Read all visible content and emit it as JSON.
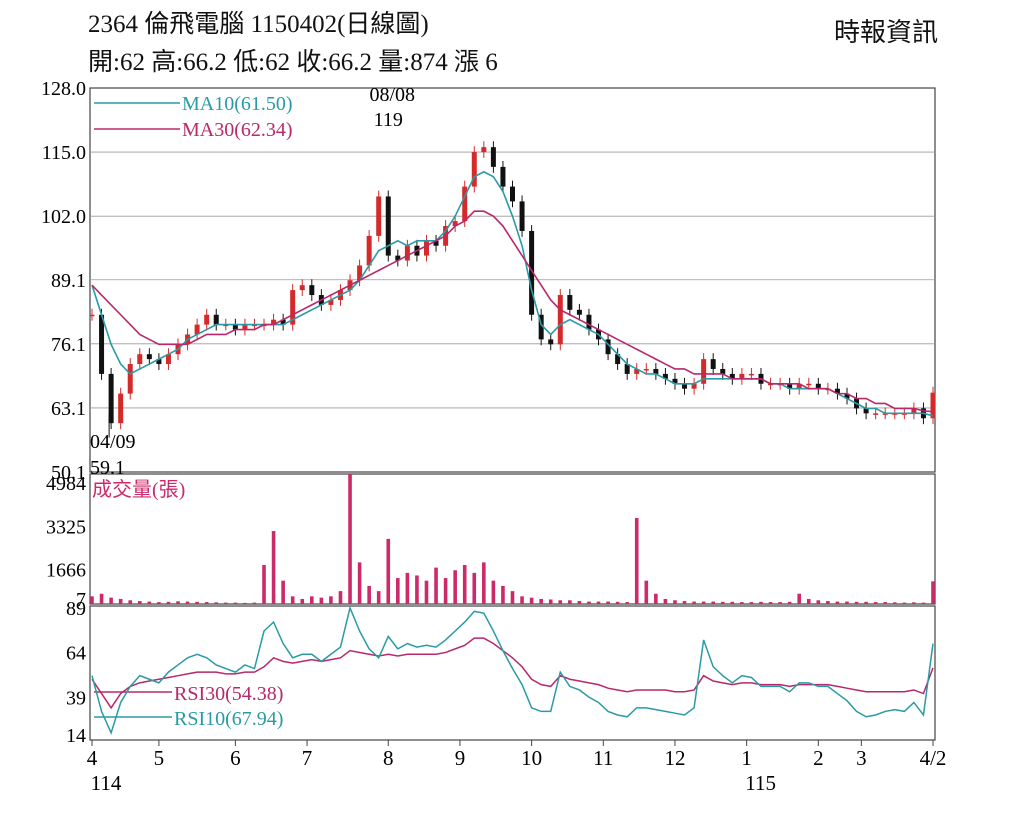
{
  "header": {
    "title": "2364  倫飛電腦 1150402(日線圖)",
    "quote": "開:62 高:66.2 低:62 收:66.2 量:874 漲 6",
    "source": "時報資訊"
  },
  "colors": {
    "ma10": "#2a9aa6",
    "ma30": "#b8286a",
    "volume": "#cc2a6a",
    "candle_up": "#d42a2a",
    "candle_down": "#111111",
    "rsi10": "#2a9aa6",
    "rsi30": "#b8286a",
    "grid": "#9a9a9a"
  },
  "chart_data": [
    {
      "type": "line",
      "name": "price",
      "ylim": [
        50.1,
        128.0
      ],
      "y_ticks": [
        "128.0",
        "115.0",
        "102.0",
        "89.1",
        "76.1",
        "63.1",
        "50.1"
      ],
      "y_tick_values": [
        128.0,
        115.0,
        102.0,
        89.1,
        76.1,
        63.1,
        50.1
      ],
      "grid": true,
      "x": [
        0,
        4,
        8,
        12,
        16,
        20,
        24,
        28,
        32,
        36,
        40,
        44,
        48,
        52,
        56,
        60,
        64,
        68,
        72,
        76,
        80,
        84,
        88,
        92,
        96,
        100,
        104,
        108,
        112,
        116,
        120,
        124,
        128,
        132,
        136,
        140,
        144,
        148,
        152,
        156,
        160,
        164,
        168,
        172,
        176,
        180,
        184,
        188,
        192,
        196,
        200,
        204,
        208,
        212,
        216,
        220,
        224,
        228,
        232,
        236,
        240,
        244,
        248,
        252,
        256,
        260,
        264,
        268,
        272,
        276,
        280,
        284,
        288,
        292,
        296,
        300,
        304,
        308,
        312,
        316,
        320,
        324,
        328,
        332,
        336,
        340,
        344,
        348,
        352
      ],
      "close": [
        82,
        70,
        60,
        66,
        72,
        74,
        73,
        72,
        74,
        76,
        78,
        80,
        82,
        80,
        80,
        79,
        80,
        80,
        80,
        81,
        80,
        87,
        88,
        86,
        84,
        85,
        87,
        89,
        92,
        98,
        106,
        94,
        93,
        96,
        94,
        97,
        96,
        100,
        101,
        108,
        115,
        116,
        112,
        108,
        105,
        99,
        82,
        77,
        76,
        86,
        83,
        82,
        79,
        77,
        74,
        72,
        70,
        71,
        71,
        70,
        69,
        68,
        67,
        68,
        73,
        71,
        70,
        69,
        70,
        70,
        68,
        68,
        68,
        67,
        68,
        68,
        67,
        67,
        66,
        65,
        63,
        62,
        62,
        62,
        62,
        62,
        63,
        61,
        66.2
      ],
      "series": [
        {
          "name": "MA10(61.50)",
          "values": [
            88,
            82,
            76,
            72,
            70,
            71,
            72,
            73,
            74,
            75,
            77,
            78,
            79,
            80,
            80,
            80,
            80,
            80,
            80,
            80,
            80,
            81,
            82,
            83,
            84,
            85,
            86,
            87,
            89,
            92,
            95,
            96,
            97,
            96,
            97,
            97,
            97,
            99,
            102,
            106,
            110,
            111,
            110,
            107,
            102,
            96,
            87,
            80,
            78,
            80,
            81,
            80,
            79,
            78,
            76,
            74,
            72,
            71,
            70,
            70,
            69,
            68,
            68,
            68,
            69,
            69,
            69,
            69,
            69,
            69,
            69,
            68,
            68,
            67,
            67,
            67,
            67,
            67,
            66,
            65,
            64,
            63,
            63,
            62,
            62,
            62,
            62,
            62,
            61.5
          ]
        },
        {
          "name": "MA30(62.34)",
          "values": [
            88,
            86,
            84,
            82,
            80,
            78,
            77,
            76,
            76,
            76,
            76,
            77,
            78,
            78,
            78,
            79,
            79,
            79,
            80,
            80,
            81,
            82,
            83,
            84,
            85,
            86,
            87,
            88,
            89,
            90,
            91,
            92,
            93,
            94,
            95,
            96,
            97,
            98,
            100,
            101,
            103,
            103,
            102,
            100,
            97,
            94,
            91,
            88,
            85,
            83,
            82,
            81,
            80,
            79,
            78,
            77,
            76,
            75,
            74,
            73,
            72,
            71,
            71,
            70,
            70,
            70,
            70,
            69,
            69,
            69,
            69,
            68,
            68,
            68,
            68,
            67,
            67,
            67,
            66,
            66,
            65,
            65,
            64,
            64,
            63,
            63,
            63,
            62.5,
            62.34
          ]
        }
      ],
      "annotations": [
        {
          "label": "08/08",
          "value": "119",
          "x": 124,
          "y": 119
        },
        {
          "label": "04/09",
          "value": "59.1",
          "x": 8,
          "y": 59.1
        }
      ]
    },
    {
      "type": "bar",
      "name": "成交量(張)",
      "ylim": [
        7,
        4984
      ],
      "y_ticks": [
        "4984",
        "3325",
        "1666",
        "7"
      ],
      "y_tick_values": [
        4984,
        3325,
        1666,
        7
      ],
      "x": [
        0,
        4,
        8,
        12,
        16,
        20,
        24,
        28,
        32,
        36,
        40,
        44,
        48,
        52,
        56,
        60,
        64,
        68,
        72,
        76,
        80,
        84,
        88,
        92,
        96,
        100,
        104,
        108,
        112,
        116,
        120,
        124,
        128,
        132,
        136,
        140,
        144,
        148,
        152,
        156,
        160,
        164,
        168,
        172,
        176,
        180,
        184,
        188,
        192,
        196,
        200,
        204,
        208,
        212,
        216,
        220,
        224,
        228,
        232,
        236,
        240,
        244,
        248,
        252,
        256,
        260,
        264,
        268,
        272,
        276,
        280,
        284,
        288,
        292,
        296,
        300,
        304,
        308,
        312,
        316,
        320,
        324,
        328,
        332,
        336,
        340,
        344,
        348,
        352
      ],
      "values": [
        300,
        400,
        250,
        200,
        150,
        120,
        100,
        80,
        90,
        110,
        100,
        90,
        80,
        70,
        60,
        60,
        50,
        60,
        1500,
        2800,
        900,
        300,
        200,
        300,
        250,
        300,
        500,
        4984,
        1600,
        700,
        500,
        2500,
        1000,
        1200,
        1100,
        900,
        1400,
        1000,
        1300,
        1500,
        1200,
        1600,
        900,
        700,
        500,
        300,
        250,
        200,
        180,
        150,
        150,
        120,
        100,
        100,
        100,
        90,
        80,
        3300,
        900,
        400,
        200,
        150,
        120,
        100,
        100,
        100,
        90,
        90,
        80,
        80,
        90,
        80,
        80,
        90,
        400,
        200,
        150,
        120,
        100,
        100,
        90,
        90,
        80,
        80,
        70,
        60,
        70,
        60,
        874
      ]
    },
    {
      "type": "line",
      "name": "RSI",
      "ylim": [
        14,
        89
      ],
      "y_ticks": [
        "89",
        "64",
        "39",
        "14"
      ],
      "y_tick_values": [
        89,
        64,
        39,
        14
      ],
      "x": [
        0,
        4,
        8,
        12,
        16,
        20,
        24,
        28,
        32,
        36,
        40,
        44,
        48,
        52,
        56,
        60,
        64,
        68,
        72,
        76,
        80,
        84,
        88,
        92,
        96,
        100,
        104,
        108,
        112,
        116,
        120,
        124,
        128,
        132,
        136,
        140,
        144,
        148,
        152,
        156,
        160,
        164,
        168,
        172,
        176,
        180,
        184,
        188,
        192,
        196,
        200,
        204,
        208,
        212,
        216,
        220,
        224,
        228,
        232,
        236,
        240,
        244,
        248,
        252,
        256,
        260,
        264,
        268,
        272,
        276,
        280,
        284,
        288,
        292,
        296,
        300,
        304,
        308,
        312,
        316,
        320,
        324,
        328,
        332,
        336,
        340,
        344,
        348,
        352
      ],
      "series": [
        {
          "name": "RSI30(54.38)",
          "values": [
            48,
            40,
            32,
            40,
            44,
            46,
            47,
            48,
            49,
            50,
            51,
            52,
            52,
            52,
            51,
            51,
            52,
            52,
            55,
            60,
            58,
            57,
            58,
            59,
            58,
            59,
            60,
            64,
            63,
            62,
            61,
            62,
            61,
            62,
            62,
            62,
            62,
            63,
            65,
            67,
            71,
            71,
            68,
            64,
            60,
            55,
            48,
            45,
            44,
            50,
            48,
            47,
            46,
            45,
            43,
            42,
            41,
            42,
            42,
            42,
            42,
            41,
            41,
            42,
            50,
            47,
            46,
            45,
            46,
            46,
            45,
            45,
            45,
            44,
            45,
            45,
            45,
            45,
            44,
            43,
            42,
            41,
            41,
            41,
            41,
            41,
            42,
            40,
            54.38
          ]
        },
        {
          "name": "RSI10(67.94)",
          "values": [
            50,
            30,
            18,
            35,
            44,
            50,
            48,
            46,
            52,
            56,
            60,
            62,
            60,
            56,
            54,
            52,
            56,
            54,
            75,
            80,
            68,
            60,
            62,
            62,
            58,
            62,
            66,
            88,
            75,
            65,
            60,
            72,
            65,
            68,
            66,
            67,
            66,
            70,
            75,
            80,
            86,
            85,
            75,
            64,
            54,
            45,
            32,
            30,
            30,
            52,
            44,
            42,
            38,
            35,
            30,
            28,
            27,
            32,
            32,
            31,
            30,
            29,
            28,
            32,
            70,
            55,
            50,
            46,
            50,
            49,
            44,
            44,
            44,
            41,
            46,
            46,
            44,
            44,
            40,
            36,
            30,
            27,
            28,
            30,
            31,
            30,
            35,
            28,
            67.94
          ]
        }
      ]
    }
  ],
  "x_axis": {
    "ticks": [
      {
        "label": "4",
        "x": 0
      },
      {
        "label": "5",
        "x": 28
      },
      {
        "label": "6",
        "x": 60
      },
      {
        "label": "7",
        "x": 90
      },
      {
        "label": "8",
        "x": 124
      },
      {
        "label": "9",
        "x": 154
      },
      {
        "label": "10",
        "x": 184
      },
      {
        "label": "11",
        "x": 214
      },
      {
        "label": "12",
        "x": 244
      },
      {
        "label": "1",
        "x": 274
      },
      {
        "label": "2",
        "x": 304
      },
      {
        "label": "3",
        "x": 322
      },
      {
        "label": "4/2",
        "x": 352
      }
    ],
    "year_labels": [
      {
        "label": "114",
        "x": 0
      },
      {
        "label": "115",
        "x": 274
      }
    ]
  }
}
